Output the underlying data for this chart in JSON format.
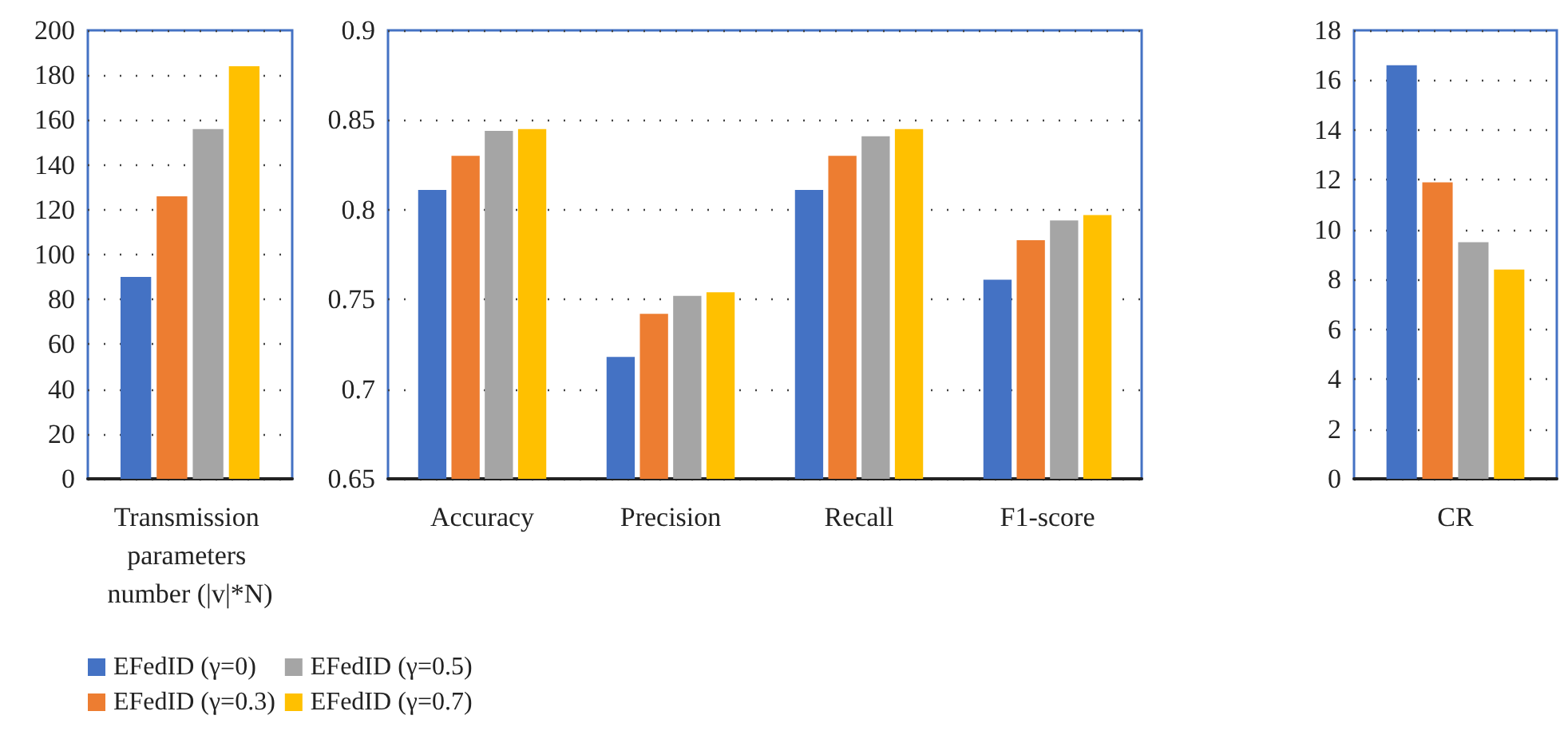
{
  "chart_data": [
    {
      "type": "bar",
      "categories": [
        "Transmission parameters number (|v|*N)"
      ],
      "ylim": [
        0,
        200
      ],
      "yticks": [
        0,
        20,
        40,
        60,
        80,
        100,
        120,
        140,
        160,
        180,
        200
      ],
      "grid": "y",
      "legend": "bottom",
      "series": [
        {
          "name": "EFedID (γ=0)",
          "color": "#4472c4",
          "values": [
            90
          ]
        },
        {
          "name": "EFedID (γ=0.3)",
          "color": "#ed7d31",
          "values": [
            126
          ]
        },
        {
          "name": "EFedID (γ=0.5)",
          "color": "#a5a5a5",
          "values": [
            156
          ]
        },
        {
          "name": "EFedID (γ=0.7)",
          "color": "#ffc000",
          "values": [
            184
          ]
        }
      ]
    },
    {
      "type": "bar",
      "categories": [
        "Accuracy",
        "Precision",
        "Recall",
        "F1-score"
      ],
      "ylim": [
        0.65,
        0.9
      ],
      "yticks": [
        0.65,
        0.7,
        0.75,
        0.8,
        0.85,
        0.9
      ],
      "grid": "y",
      "series": [
        {
          "color": "#4472c4",
          "values": [
            0.811,
            0.718,
            0.811,
            0.761
          ]
        },
        {
          "color": "#ed7d31",
          "values": [
            0.83,
            0.742,
            0.83,
            0.783
          ]
        },
        {
          "color": "#a5a5a5",
          "values": [
            0.844,
            0.752,
            0.841,
            0.794
          ]
        },
        {
          "color": "#ffc000",
          "values": [
            0.845,
            0.754,
            0.845,
            0.797
          ]
        }
      ]
    },
    {
      "type": "bar",
      "categories": [
        "CR"
      ],
      "ylim": [
        0,
        18
      ],
      "yticks": [
        0,
        2,
        4,
        6,
        8,
        10,
        12,
        14,
        16,
        18
      ],
      "grid": "y",
      "series": [
        {
          "color": "#4472c4",
          "values": [
            16.6
          ]
        },
        {
          "color": "#ed7d31",
          "values": [
            11.9
          ]
        },
        {
          "color": "#a5a5a5",
          "values": [
            9.5
          ]
        },
        {
          "color": "#ffc000",
          "values": [
            8.4
          ]
        }
      ]
    }
  ]
}
